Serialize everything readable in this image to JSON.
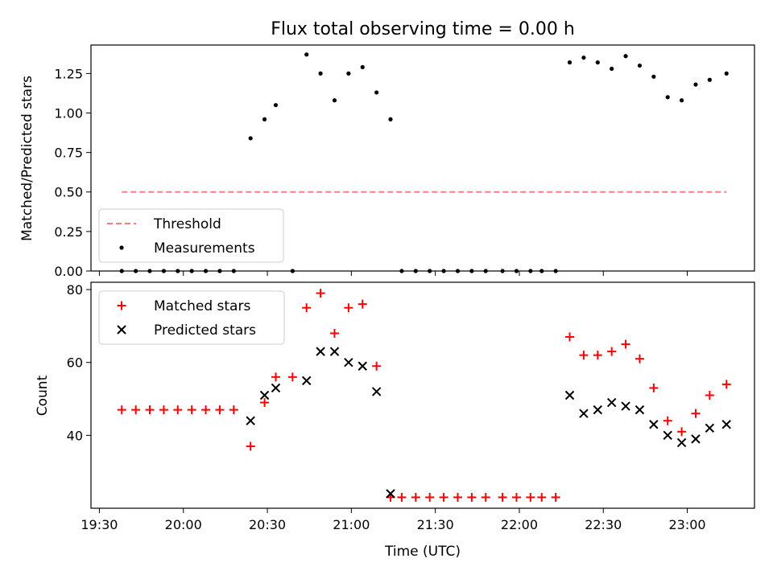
{
  "chart_data": [
    {
      "type": "scatter",
      "title": "Flux total observing time = 0.00 h",
      "ylabel": "Matched/Predicted stars",
      "xlabel": "",
      "x_axis_type": "time",
      "xlim": [
        "19:27",
        "23:24"
      ],
      "ylim": [
        0,
        1.43
      ],
      "ytick_labels": [
        "0.00",
        "0.25",
        "0.50",
        "0.75",
        "1.00",
        "1.25"
      ],
      "yticks": [
        0,
        0.25,
        0.5,
        0.75,
        1.0,
        1.25
      ],
      "grid": false,
      "legend_position": "lower-left",
      "legend": [
        "Threshold",
        "Measurements"
      ],
      "threshold": {
        "name": "Threshold",
        "value": 0.5,
        "x_start": "19:38",
        "x_end": "23:14",
        "color": "#ff7f7f",
        "style": "dashed"
      },
      "series": [
        {
          "name": "Measurements",
          "color": "#000000",
          "marker": "dot",
          "points": [
            [
              "19:38",
              0
            ],
            [
              "19:43",
              0
            ],
            [
              "19:48",
              0
            ],
            [
              "19:53",
              0
            ],
            [
              "19:58",
              0
            ],
            [
              "20:03",
              0
            ],
            [
              "20:08",
              0
            ],
            [
              "20:13",
              0
            ],
            [
              "20:18",
              0
            ],
            [
              "20:24",
              0.84
            ],
            [
              "20:29",
              0.96
            ],
            [
              "20:33",
              1.05
            ],
            [
              "20:39",
              0
            ],
            [
              "20:44",
              1.37
            ],
            [
              "20:49",
              1.25
            ],
            [
              "20:54",
              1.08
            ],
            [
              "20:59",
              1.25
            ],
            [
              "21:04",
              1.29
            ],
            [
              "21:09",
              1.13
            ],
            [
              "21:14",
              0.96
            ],
            [
              "21:18",
              0
            ],
            [
              "21:23",
              0
            ],
            [
              "21:28",
              0
            ],
            [
              "21:33",
              0
            ],
            [
              "21:38",
              0
            ],
            [
              "21:43",
              0
            ],
            [
              "21:48",
              0
            ],
            [
              "21:54",
              0
            ],
            [
              "21:59",
              0
            ],
            [
              "22:04",
              0
            ],
            [
              "22:08",
              0
            ],
            [
              "22:13",
              0
            ],
            [
              "22:18",
              1.32
            ],
            [
              "22:23",
              1.35
            ],
            [
              "22:28",
              1.32
            ],
            [
              "22:33",
              1.28
            ],
            [
              "22:38",
              1.36
            ],
            [
              "22:43",
              1.3
            ],
            [
              "22:48",
              1.23
            ],
            [
              "22:53",
              1.1
            ],
            [
              "22:58",
              1.08
            ],
            [
              "23:03",
              1.18
            ],
            [
              "23:08",
              1.21
            ],
            [
              "23:14",
              1.25
            ]
          ]
        }
      ]
    },
    {
      "type": "scatter",
      "title": "",
      "ylabel": "Count",
      "xlabel": "Time (UTC)",
      "x_axis_type": "time",
      "xlim": [
        "19:27",
        "23:24"
      ],
      "ylim": [
        20,
        82
      ],
      "ytick_labels": [
        "40",
        "60",
        "80"
      ],
      "yticks": [
        40,
        60,
        80
      ],
      "xtick_labels": [
        "19:30",
        "20:00",
        "20:30",
        "21:00",
        "21:30",
        "22:00",
        "22:30",
        "23:00"
      ],
      "xticks": [
        "19:30",
        "20:00",
        "20:30",
        "21:00",
        "21:30",
        "22:00",
        "22:30",
        "23:00"
      ],
      "grid": false,
      "legend_position": "top-left",
      "legend": [
        "Matched stars",
        "Predicted stars"
      ],
      "series": [
        {
          "name": "Matched stars",
          "color": "#ff0000",
          "marker": "plus",
          "points": [
            [
              "19:38",
              47
            ],
            [
              "19:43",
              47
            ],
            [
              "19:48",
              47
            ],
            [
              "19:53",
              47
            ],
            [
              "19:58",
              47
            ],
            [
              "20:03",
              47
            ],
            [
              "20:08",
              47
            ],
            [
              "20:13",
              47
            ],
            [
              "20:18",
              47
            ],
            [
              "20:24",
              37
            ],
            [
              "20:29",
              49
            ],
            [
              "20:33",
              56
            ],
            [
              "20:39",
              56
            ],
            [
              "20:44",
              75
            ],
            [
              "20:49",
              79
            ],
            [
              "20:54",
              68
            ],
            [
              "20:59",
              75
            ],
            [
              "21:04",
              76
            ],
            [
              "21:09",
              59
            ],
            [
              "21:14",
              23
            ],
            [
              "21:18",
              23
            ],
            [
              "21:23",
              23
            ],
            [
              "21:28",
              23
            ],
            [
              "21:33",
              23
            ],
            [
              "21:38",
              23
            ],
            [
              "21:43",
              23
            ],
            [
              "21:48",
              23
            ],
            [
              "21:54",
              23
            ],
            [
              "21:59",
              23
            ],
            [
              "22:04",
              23
            ],
            [
              "22:08",
              23
            ],
            [
              "22:13",
              23
            ],
            [
              "22:18",
              67
            ],
            [
              "22:23",
              62
            ],
            [
              "22:28",
              62
            ],
            [
              "22:33",
              63
            ],
            [
              "22:38",
              65
            ],
            [
              "22:43",
              61
            ],
            [
              "22:48",
              53
            ],
            [
              "22:53",
              44
            ],
            [
              "22:58",
              41
            ],
            [
              "23:03",
              46
            ],
            [
              "23:08",
              51
            ],
            [
              "23:14",
              54
            ]
          ]
        },
        {
          "name": "Predicted stars",
          "color": "#000000",
          "marker": "x",
          "points": [
            [
              "20:24",
              44
            ],
            [
              "20:29",
              51
            ],
            [
              "20:33",
              53
            ],
            [
              "20:44",
              55
            ],
            [
              "20:49",
              63
            ],
            [
              "20:54",
              63
            ],
            [
              "20:59",
              60
            ],
            [
              "21:04",
              59
            ],
            [
              "21:09",
              52
            ],
            [
              "21:14",
              24
            ],
            [
              "22:18",
              51
            ],
            [
              "22:23",
              46
            ],
            [
              "22:28",
              47
            ],
            [
              "22:33",
              49
            ],
            [
              "22:38",
              48
            ],
            [
              "22:43",
              47
            ],
            [
              "22:48",
              43
            ],
            [
              "22:53",
              40
            ],
            [
              "22:58",
              38
            ],
            [
              "23:03",
              39
            ],
            [
              "23:08",
              42
            ],
            [
              "23:14",
              43
            ]
          ]
        }
      ]
    }
  ]
}
